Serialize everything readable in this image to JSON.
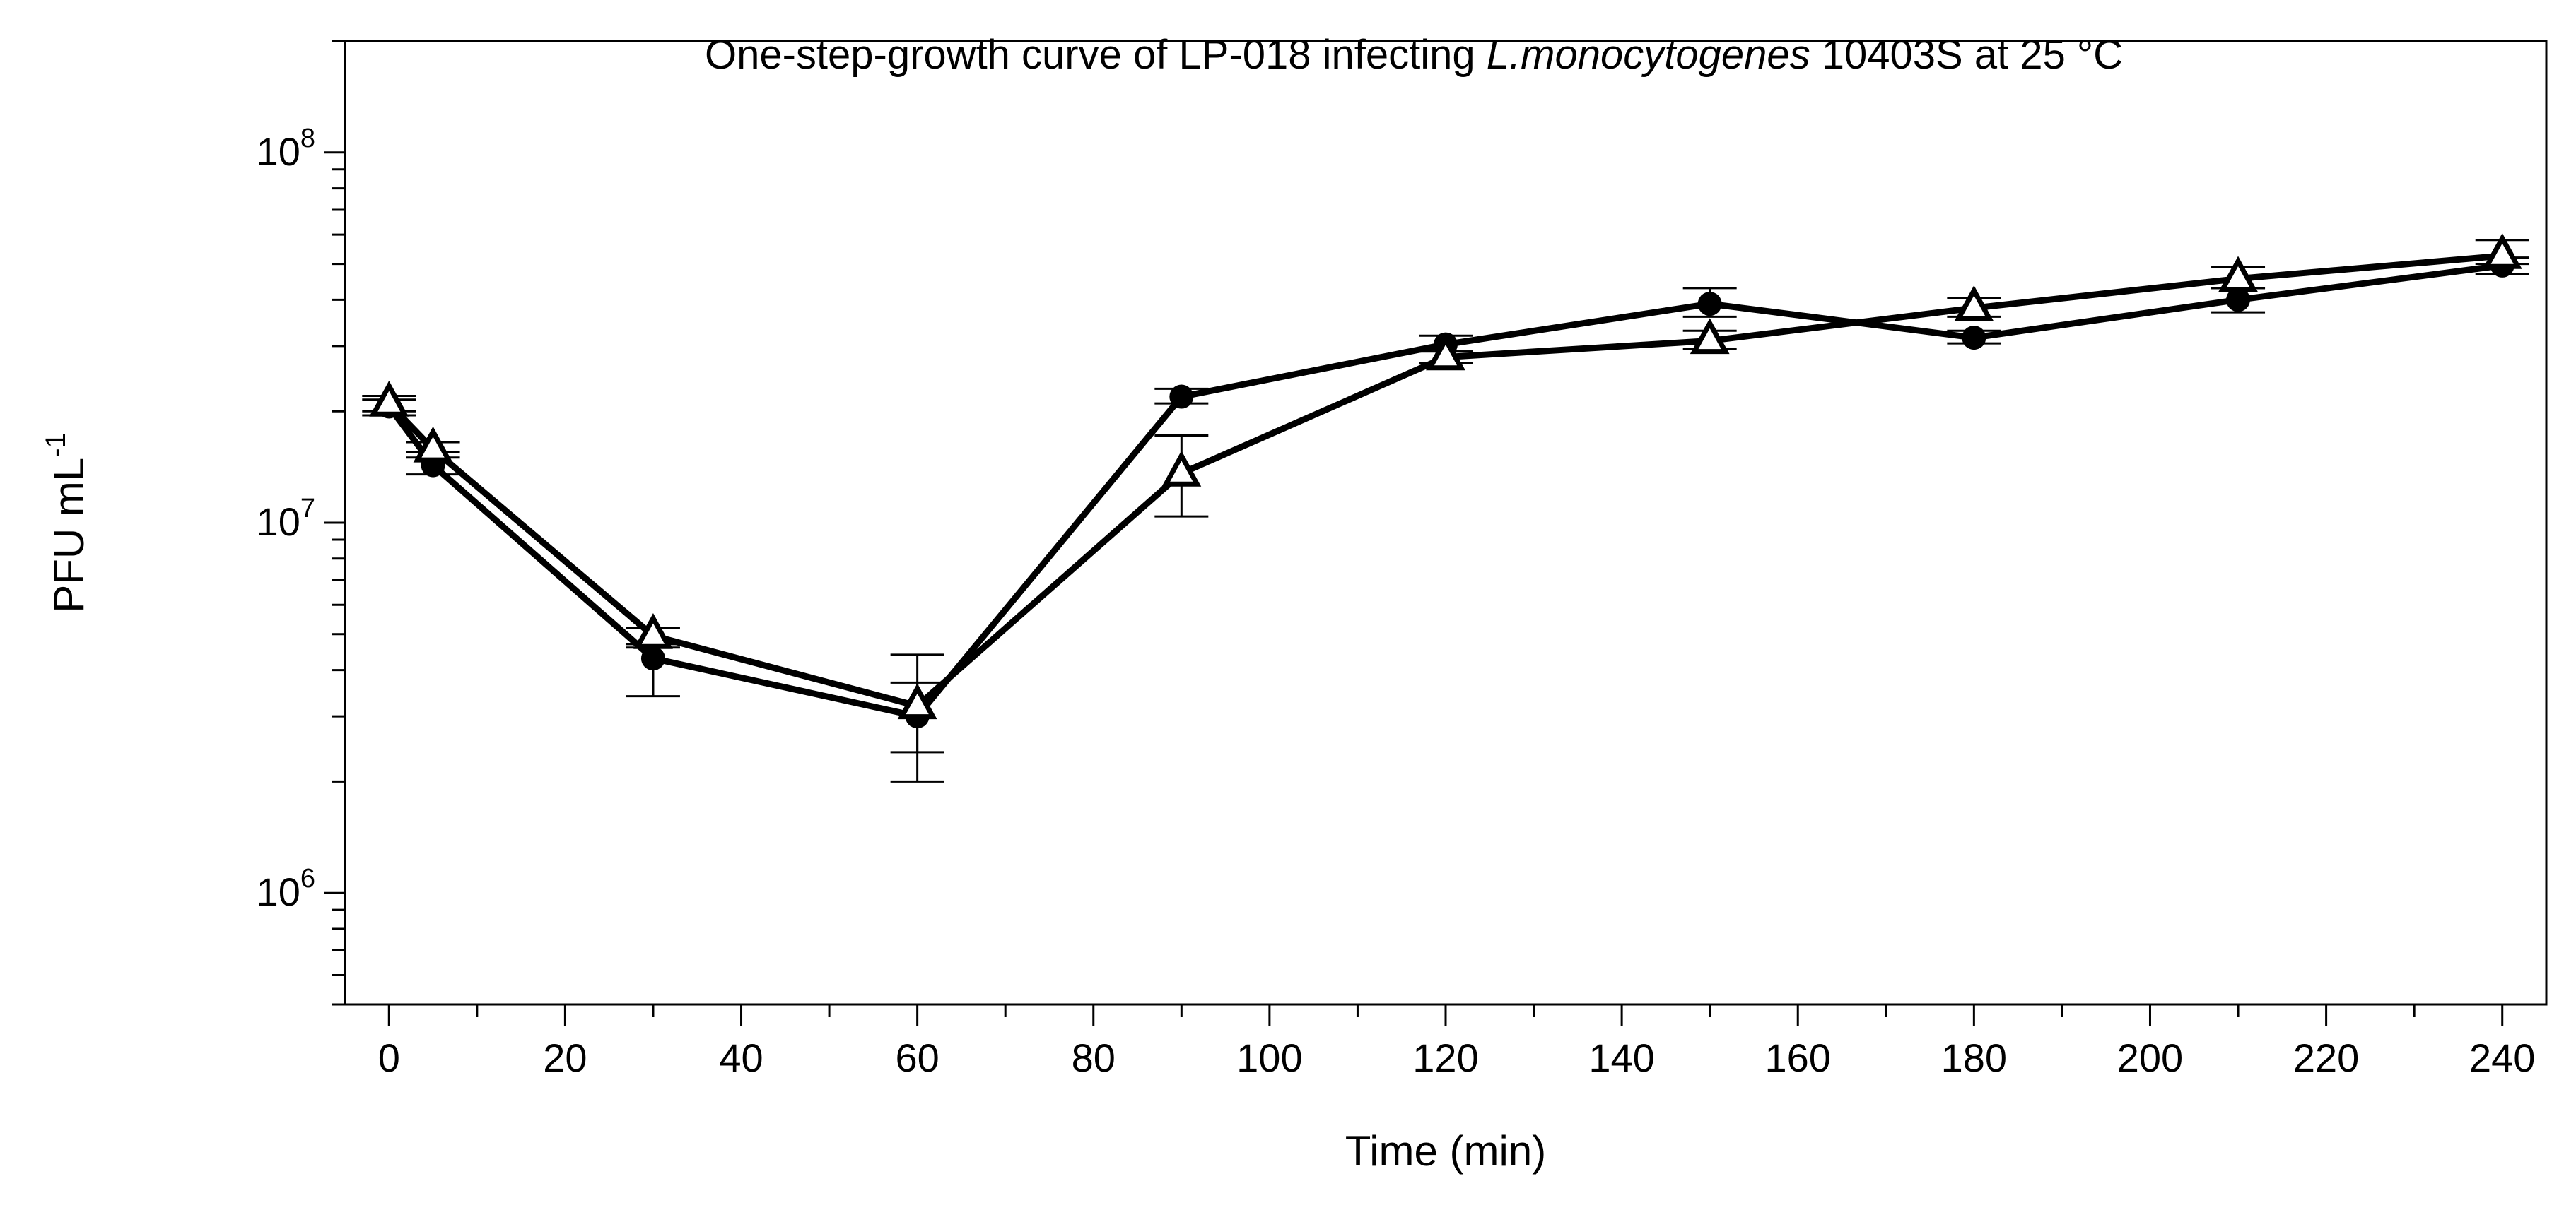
{
  "chart_data": {
    "type": "line",
    "title_parts": {
      "prefix": "One-step-growth curve of LP-018 infecting ",
      "italic": "L.monocytogenes",
      "suffix": " 10403S at 25 °C"
    },
    "xlabel": "Time (min)",
    "ylabel": "PFU mL",
    "ylabel_superscript": "-1",
    "yscale": "log",
    "xlim": [
      -5,
      245
    ],
    "ylim": [
      500000,
      200000000
    ],
    "x_ticks": [
      0,
      20,
      40,
      60,
      80,
      100,
      120,
      140,
      160,
      180,
      200,
      220,
      240
    ],
    "y_ticks": [
      {
        "base": "10",
        "exp": "6",
        "value": 1000000
      },
      {
        "base": "10",
        "exp": "7",
        "value": 10000000
      },
      {
        "base": "10",
        "exp": "8",
        "value": 100000000
      }
    ],
    "grid": false,
    "legend": null,
    "x": [
      0,
      5,
      30,
      60,
      90,
      120,
      150,
      180,
      210,
      240
    ],
    "series": [
      {
        "name": "filled-circle",
        "marker": "circle",
        "values": [
          20600000,
          14300000,
          4300000,
          3000000,
          21900000,
          30300000,
          39000000,
          31600000,
          40000000,
          49500000
        ],
        "err_low": [
          19500000,
          13500000,
          3400000,
          2000000,
          21000000,
          29000000,
          36000000,
          30500000,
          37000000,
          47000000
        ],
        "err_high": [
          21500000,
          15500000,
          4600000,
          4400000,
          23000000,
          32000000,
          43000000,
          33000000,
          43000000,
          52000000
        ]
      },
      {
        "name": "open-triangle",
        "marker": "triangle",
        "values": [
          21000000,
          15800000,
          4950000,
          3200000,
          13600000,
          28000000,
          31000000,
          38000000,
          45600000,
          52600000
        ],
        "err_low": [
          20000000,
          15000000,
          4700000,
          2400000,
          10400000,
          27000000,
          29500000,
          36000000,
          43000000,
          50000000
        ],
        "err_high": [
          22000000,
          16500000,
          5200000,
          3700000,
          17200000,
          29000000,
          33000000,
          40500000,
          49000000,
          58000000
        ]
      }
    ]
  }
}
